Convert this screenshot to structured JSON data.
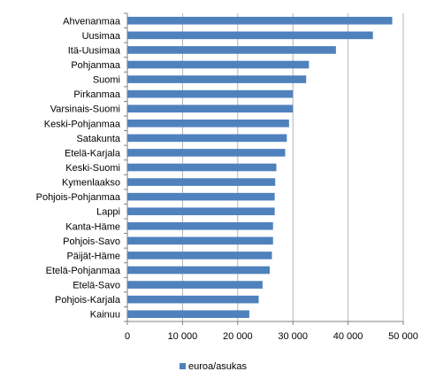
{
  "chart_data": {
    "type": "bar",
    "orientation": "horizontal",
    "title": "",
    "xlabel": "",
    "ylabel": "",
    "categories": [
      "Ahvenanmaa",
      "Uusimaa",
      "Itä-Uusimaa",
      "Pohjanmaa",
      "Suomi",
      "Pirkanmaa",
      "Varsinais-Suomi",
      "Keski-Pohjanmaa",
      "Satakunta",
      "Etelä-Karjala",
      "Keski-Suomi",
      "Kymenlaakso",
      "Pohjois-Pohjanmaa",
      "Lappi",
      "Kanta-Häme",
      "Pohjois-Savo",
      "Päijät-Häme",
      "Etelä-Pohjanmaa",
      "Etelä-Savo",
      "Pohjois-Karjala",
      "Kainuu"
    ],
    "series": [
      {
        "name": "euroa/asukas",
        "color": "#4F81BD",
        "values": [
          48000,
          44500,
          37800,
          32900,
          32400,
          30000,
          30000,
          29300,
          28900,
          28600,
          27000,
          26800,
          26700,
          26700,
          26400,
          26400,
          26200,
          25800,
          24500,
          23800,
          22100
        ]
      }
    ],
    "xlim": [
      0,
      50000
    ],
    "xticks": [
      0,
      10000,
      20000,
      30000,
      40000,
      50000
    ],
    "xtick_labels": [
      "0",
      "10 000",
      "20 000",
      "30 000",
      "40 000",
      "50 000"
    ],
    "grid": "vertical",
    "legend_position": "bottom"
  }
}
